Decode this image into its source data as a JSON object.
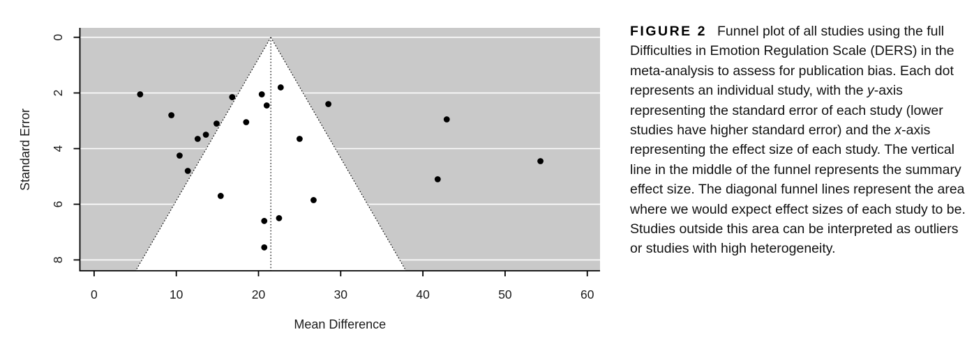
{
  "figure": {
    "caption": {
      "label": "FIGURE 2",
      "segments": [
        {
          "text": "Funnel plot of all studies using the full Difficulties in Emotion Regulation Scale (DERS) in the meta-analysis to assess for publication bias. Each dot represents an individual study, with the ",
          "italic": false
        },
        {
          "text": "y",
          "italic": true
        },
        {
          "text": "-axis representing the standard error of each study (lower studies have higher standard error) and the ",
          "italic": false
        },
        {
          "text": "x",
          "italic": true
        },
        {
          "text": "-axis representing the effect size of each study. The vertical line in the middle of the funnel represents the summary effect size. The diagonal funnel lines represent the area where we would expect effect sizes of each study to be. Studies outside this area can be interpreted as outliers or studies with high heterogeneity.",
          "italic": false
        }
      ]
    }
  },
  "chart_data": {
    "type": "scatter",
    "variant": "funnel-plot",
    "title": "",
    "xlabel": "Mean Difference",
    "ylabel": "Standard Error",
    "x_ticks": [
      0,
      10,
      20,
      30,
      40,
      50,
      60
    ],
    "y_ticks": [
      0,
      2,
      4,
      6,
      8
    ],
    "xlim": [
      -1.73,
      61.55
    ],
    "ylim_standard_error": [
      -0.34,
      8.39
    ],
    "y_axis_increases_downward": true,
    "grid": true,
    "summary_effect": 21.5,
    "funnel_ci_z": 1.96,
    "colors": {
      "shade_background": "#c9c9c9",
      "funnel_region": "#ffffff",
      "gridline": "#ffffff",
      "point": "#000000",
      "funnel_line": "#000000",
      "axis": "#000000"
    },
    "points": [
      {
        "x": 5.6,
        "se": 2.05
      },
      {
        "x": 9.4,
        "se": 2.8
      },
      {
        "x": 10.4,
        "se": 4.25
      },
      {
        "x": 11.4,
        "se": 4.8
      },
      {
        "x": 12.6,
        "se": 3.65
      },
      {
        "x": 13.6,
        "se": 3.5
      },
      {
        "x": 14.9,
        "se": 3.1
      },
      {
        "x": 15.4,
        "se": 5.7
      },
      {
        "x": 16.8,
        "se": 2.15
      },
      {
        "x": 18.5,
        "se": 3.05
      },
      {
        "x": 20.4,
        "se": 2.05
      },
      {
        "x": 21.0,
        "se": 2.45
      },
      {
        "x": 20.7,
        "se": 6.6
      },
      {
        "x": 20.7,
        "se": 7.55
      },
      {
        "x": 22.7,
        "se": 1.8
      },
      {
        "x": 22.5,
        "se": 6.5
      },
      {
        "x": 25.0,
        "se": 3.65
      },
      {
        "x": 26.7,
        "se": 5.85
      },
      {
        "x": 28.5,
        "se": 2.4
      },
      {
        "x": 42.9,
        "se": 2.95
      },
      {
        "x": 41.8,
        "se": 5.1
      },
      {
        "x": 54.3,
        "se": 4.45
      }
    ]
  }
}
